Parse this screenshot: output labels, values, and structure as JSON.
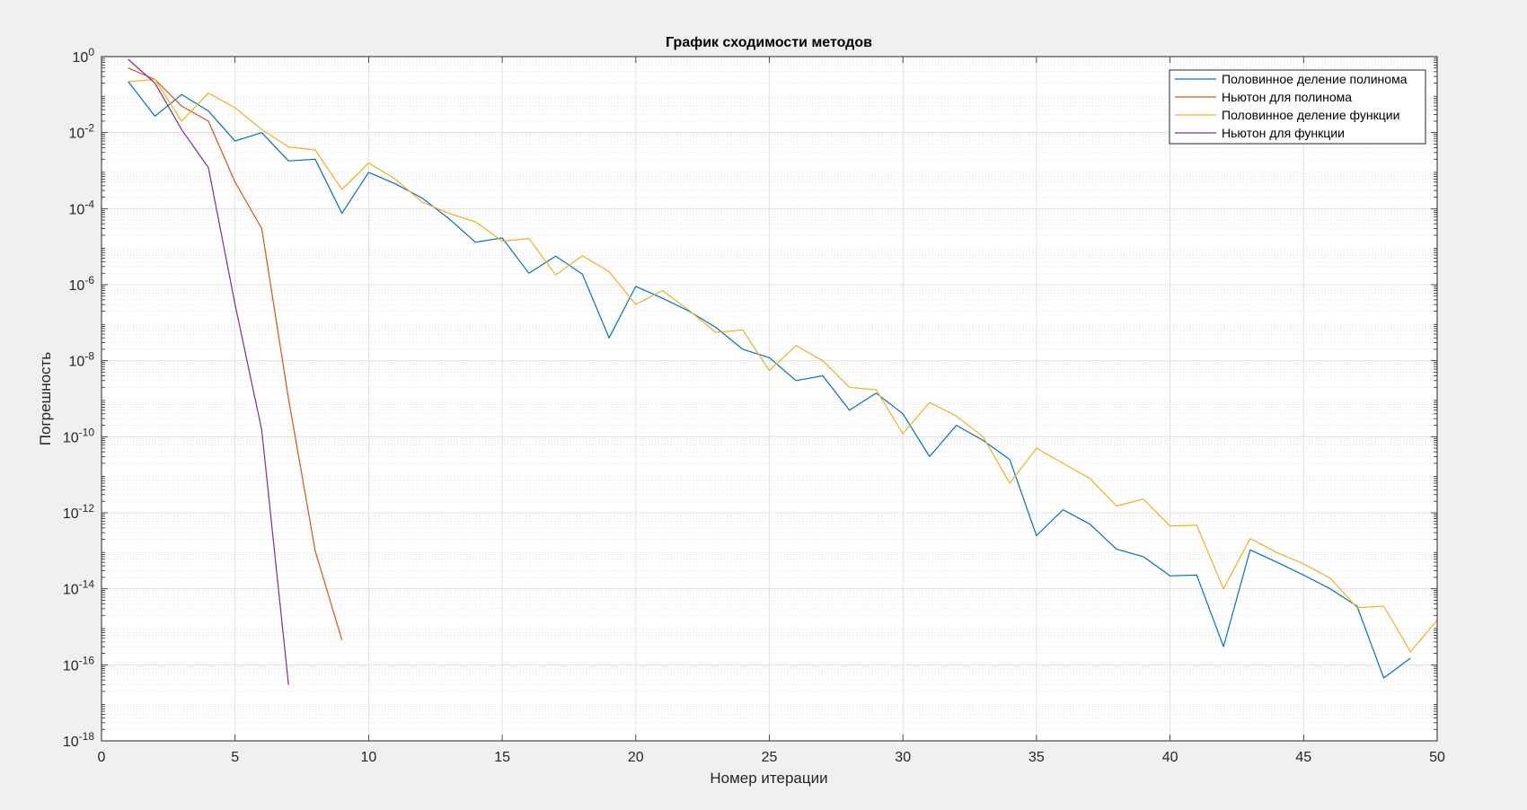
{
  "chart_data": {
    "type": "line",
    "title": "График сходимости методов",
    "xlabel": "Номер итерации",
    "ylabel": "Погрешность",
    "xlim": [
      0,
      50
    ],
    "ylim": [
      1e-18,
      1
    ],
    "yscale": "log",
    "grid": true,
    "minor_grid": true,
    "legend_position": "top-right",
    "x_ticks": [
      {
        "value": 0,
        "label": "0"
      },
      {
        "value": 5,
        "label": "5"
      },
      {
        "value": 10,
        "label": "10"
      },
      {
        "value": 15,
        "label": "15"
      },
      {
        "value": 20,
        "label": "20"
      },
      {
        "value": 25,
        "label": "25"
      },
      {
        "value": 30,
        "label": "30"
      },
      {
        "value": 35,
        "label": "35"
      },
      {
        "value": 40,
        "label": "40"
      },
      {
        "value": 45,
        "label": "45"
      },
      {
        "value": 50,
        "label": "50"
      }
    ],
    "y_ticks": [
      {
        "exp": 0,
        "base": "10",
        "sup": "0"
      },
      {
        "exp": -2,
        "base": "10",
        "sup": "-2"
      },
      {
        "exp": -4,
        "base": "10",
        "sup": "-4"
      },
      {
        "exp": -6,
        "base": "10",
        "sup": "-6"
      },
      {
        "exp": -8,
        "base": "10",
        "sup": "-8"
      },
      {
        "exp": -10,
        "base": "10",
        "sup": "-10"
      },
      {
        "exp": -12,
        "base": "10",
        "sup": "-12"
      },
      {
        "exp": -14,
        "base": "10",
        "sup": "-14"
      },
      {
        "exp": -16,
        "base": "10",
        "sup": "-16"
      },
      {
        "exp": -18,
        "base": "10",
        "sup": "-18"
      }
    ],
    "series": [
      {
        "name": "Половинное деление полинома",
        "color": "#0072BD",
        "x": [
          1,
          2,
          3,
          4,
          5,
          6,
          7,
          8,
          9,
          10,
          11,
          12,
          13,
          14,
          15,
          16,
          17,
          18,
          19,
          20,
          21,
          22,
          23,
          24,
          25,
          26,
          27,
          28,
          29,
          30,
          31,
          32,
          33,
          34,
          35,
          36,
          37,
          38,
          39,
          40,
          41,
          42,
          43,
          44,
          45,
          46,
          47,
          48,
          49
        ],
        "y": [
          0.22,
          0.027,
          0.1,
          0.037,
          0.006,
          0.01,
          0.0018,
          0.002,
          7.5e-05,
          0.0009,
          0.00045,
          0.00019,
          5.5e-05,
          1.3e-05,
          1.7e-05,
          2e-06,
          5.6e-06,
          1.9e-06,
          4e-08,
          9e-07,
          4.4e-07,
          2e-07,
          7.5e-08,
          2e-08,
          1.2e-08,
          3e-09,
          4e-09,
          5e-10,
          1.4e-09,
          4e-10,
          3e-11,
          2e-10,
          8e-11,
          2.5e-11,
          2.5e-13,
          1.2e-12,
          5e-13,
          1.1e-13,
          7e-14,
          2.2e-14,
          2.3e-14,
          3e-16,
          1.05e-13,
          5e-14,
          2.3e-14,
          1e-14,
          3.5e-15,
          4.5e-17,
          1.5e-16
        ]
      },
      {
        "name": "Ньютон для полинома",
        "color": "#D95319",
        "x": [
          1,
          2,
          3,
          4,
          5,
          6,
          7,
          8,
          9
        ],
        "y": [
          0.5,
          0.25,
          0.05,
          0.02,
          0.0005,
          3e-05,
          1e-09,
          1e-13,
          4.5e-16
        ]
      },
      {
        "name": "Половинное деление функции",
        "color": "#EDB120",
        "x": [
          1,
          2,
          3,
          4,
          5,
          6,
          7,
          8,
          9,
          10,
          11,
          12,
          13,
          14,
          15,
          16,
          17,
          18,
          19,
          20,
          21,
          22,
          23,
          24,
          25,
          26,
          27,
          28,
          29,
          30,
          31,
          32,
          33,
          34,
          35,
          36,
          37,
          38,
          39,
          40,
          41,
          42,
          43,
          44,
          45,
          46,
          47,
          48,
          49,
          50
        ],
        "y": [
          0.22,
          0.25,
          0.02,
          0.11,
          0.045,
          0.012,
          0.0042,
          0.0035,
          0.00032,
          0.0016,
          0.0006,
          0.00015,
          7.5e-05,
          4.5e-05,
          1.4e-05,
          1.65e-05,
          1.8e-06,
          5.8e-06,
          2.2e-06,
          3e-07,
          7e-07,
          2.1e-07,
          5.5e-08,
          6.5e-08,
          5.5e-09,
          2.5e-08,
          1e-08,
          2e-09,
          1.7e-09,
          1.2e-10,
          8e-10,
          3.5e-10,
          1e-10,
          6e-12,
          5e-11,
          2e-11,
          8e-12,
          1.5e-12,
          2.3e-12,
          4.5e-13,
          4.7e-13,
          1e-14,
          2.1e-13,
          9e-14,
          4.5e-14,
          1.9e-14,
          3.2e-15,
          3.5e-15,
          2.2e-16,
          1.5e-15
        ]
      },
      {
        "name": "Ньютон для функции",
        "color": "#7E2F8E",
        "x": [
          1,
          2,
          3,
          4,
          5,
          6,
          7
        ],
        "y": [
          0.85,
          0.2,
          0.012,
          0.0012,
          3e-07,
          1.5e-10,
          3e-17
        ]
      }
    ]
  }
}
